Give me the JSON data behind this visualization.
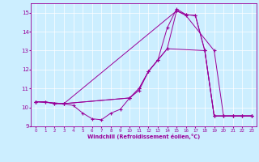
{
  "xlabel": "Windchill (Refroidissement éolien,°C)",
  "bg_color": "#cceeff",
  "line_color": "#990099",
  "xlim": [
    -0.5,
    23.5
  ],
  "ylim": [
    9,
    15.5
  ],
  "yticks": [
    9,
    10,
    11,
    12,
    13,
    14,
    15
  ],
  "xticks": [
    0,
    1,
    2,
    3,
    4,
    5,
    6,
    7,
    8,
    9,
    10,
    11,
    12,
    13,
    14,
    15,
    16,
    17,
    18,
    19,
    20,
    21,
    22,
    23
  ],
  "lines": [
    {
      "x": [
        0,
        1,
        2,
        3,
        4,
        5,
        6,
        7,
        8,
        9,
        10,
        11,
        12,
        13,
        14,
        15,
        16,
        17,
        18,
        19,
        20,
        21,
        22,
        23
      ],
      "y": [
        10.3,
        10.3,
        10.2,
        10.2,
        10.1,
        9.7,
        9.4,
        9.35,
        9.7,
        9.9,
        10.5,
        10.9,
        11.9,
        12.5,
        13.1,
        15.1,
        14.9,
        14.85,
        13.0,
        9.55,
        9.55,
        9.55,
        9.55,
        9.55
      ]
    },
    {
      "x": [
        0,
        1,
        2,
        3,
        10,
        11,
        12,
        13,
        14,
        15,
        16,
        17,
        18,
        19,
        20,
        21,
        22,
        23
      ],
      "y": [
        10.3,
        10.3,
        10.2,
        10.2,
        10.5,
        11.0,
        11.9,
        12.5,
        14.2,
        15.2,
        14.9,
        14.85,
        13.0,
        9.55,
        9.55,
        9.55,
        9.55,
        9.55
      ]
    },
    {
      "x": [
        0,
        3,
        15,
        16,
        19,
        20,
        21,
        22,
        23
      ],
      "y": [
        10.3,
        10.2,
        15.1,
        14.85,
        13.0,
        9.55,
        9.55,
        9.55,
        9.55
      ]
    },
    {
      "x": [
        0,
        3,
        10,
        11,
        12,
        13,
        14,
        18,
        19,
        23
      ],
      "y": [
        10.3,
        10.2,
        10.5,
        11.0,
        11.9,
        12.5,
        13.1,
        13.0,
        9.55,
        9.55
      ]
    }
  ]
}
